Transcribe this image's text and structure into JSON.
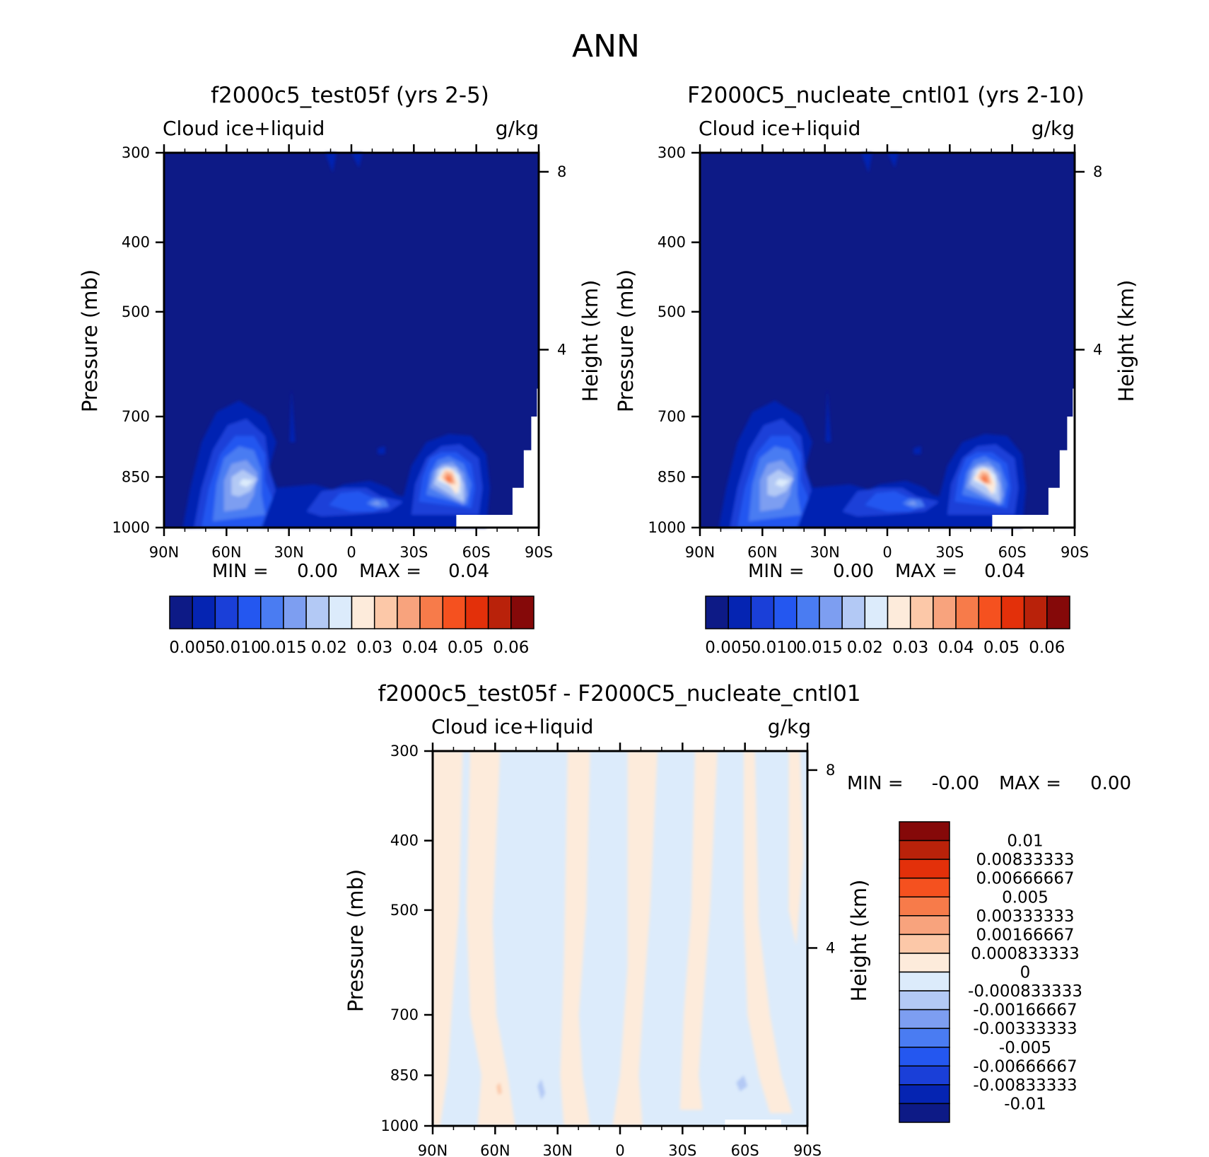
{
  "figure_title": "ANN",
  "palette": {
    "abs": [
      "#0d1a86",
      "#0524b2",
      "#1a3fd8",
      "#2457f0",
      "#4a7cf2",
      "#7d9ef1",
      "#b3c9f5",
      "#dcebfb",
      "#fdebdb",
      "#fcc8a8",
      "#f8a37d",
      "#f77b4a",
      "#f5511f",
      "#e3300a",
      "#b9220a",
      "#850909"
    ],
    "diff": [
      "#0d1a86",
      "#0524b2",
      "#1a3fd8",
      "#2457f0",
      "#4a7cf2",
      "#7d9ef1",
      "#b3c9f5",
      "#dcebfb",
      "#fdebdb",
      "#fcc8a8",
      "#f8a37d",
      "#f77b4a",
      "#f5511f",
      "#e3300a",
      "#b9220a",
      "#850909"
    ],
    "missing": "#ffffff"
  },
  "chart_data": [
    {
      "id": "panel_a",
      "type": "heatmap",
      "title": "f2000c5_test05f (yrs 2-5)",
      "variable": "Cloud ice+liquid",
      "units": "g/kg",
      "ylabel": "Pressure (mb)",
      "ylabel_right": "Height (km)",
      "x_ticks": [
        "90N",
        "60N",
        "30N",
        "0",
        "30S",
        "60S",
        "90S"
      ],
      "y_ticks": [
        300,
        400,
        500,
        700,
        850,
        1000
      ],
      "y_range": [
        1000,
        300
      ],
      "height_ticks": [
        8,
        4
      ],
      "min_label": "MIN =",
      "min_value": "0.00",
      "max_label": "MAX =",
      "max_value": "0.04",
      "colorbar_labels": [
        "0.005",
        "0.010",
        "0.015",
        "0.02",
        "0.03",
        "0.04",
        "0.05",
        "0.06"
      ],
      "field": "absolute",
      "grid": false
    },
    {
      "id": "panel_b",
      "type": "heatmap",
      "title": "F2000C5_nucleate_cntl01 (yrs 2-10)",
      "variable": "Cloud ice+liquid",
      "units": "g/kg",
      "ylabel": "Pressure (mb)",
      "ylabel_right": "Height (km)",
      "x_ticks": [
        "90N",
        "60N",
        "30N",
        "0",
        "30S",
        "60S",
        "90S"
      ],
      "y_ticks": [
        300,
        400,
        500,
        700,
        850,
        1000
      ],
      "y_range": [
        1000,
        300
      ],
      "height_ticks": [
        8,
        4
      ],
      "min_label": "MIN =",
      "min_value": "0.00",
      "max_label": "MAX =",
      "max_value": "0.04",
      "colorbar_labels": [
        "0.005",
        "0.010",
        "0.015",
        "0.02",
        "0.03",
        "0.04",
        "0.05",
        "0.06"
      ],
      "field": "absolute",
      "grid": false
    },
    {
      "id": "panel_c",
      "type": "heatmap",
      "title": "f2000c5_test05f - F2000C5_nucleate_cntl01",
      "variable": "Cloud ice+liquid",
      "units": "g/kg",
      "ylabel": "Pressure (mb)",
      "ylabel_right": "Height (km)",
      "x_ticks": [
        "90N",
        "60N",
        "30N",
        "0",
        "30S",
        "60S",
        "90S"
      ],
      "y_ticks": [
        300,
        400,
        500,
        700,
        850,
        1000
      ],
      "y_range": [
        1000,
        300
      ],
      "height_ticks": [
        8,
        4
      ],
      "min_label": "MIN =",
      "min_value": "-0.00",
      "max_label": "MAX =",
      "max_value": "0.00",
      "colorbar_labels": [
        "0.01",
        "0.00833333",
        "0.00666667",
        "0.005",
        "0.00333333",
        "0.00166667",
        "0.000833333",
        "0",
        "-0.000833333",
        "-0.00166667",
        "-0.00333333",
        "-0.005",
        "-0.00666667",
        "-0.00833333",
        "-0.01"
      ],
      "field": "difference",
      "grid": false
    }
  ]
}
